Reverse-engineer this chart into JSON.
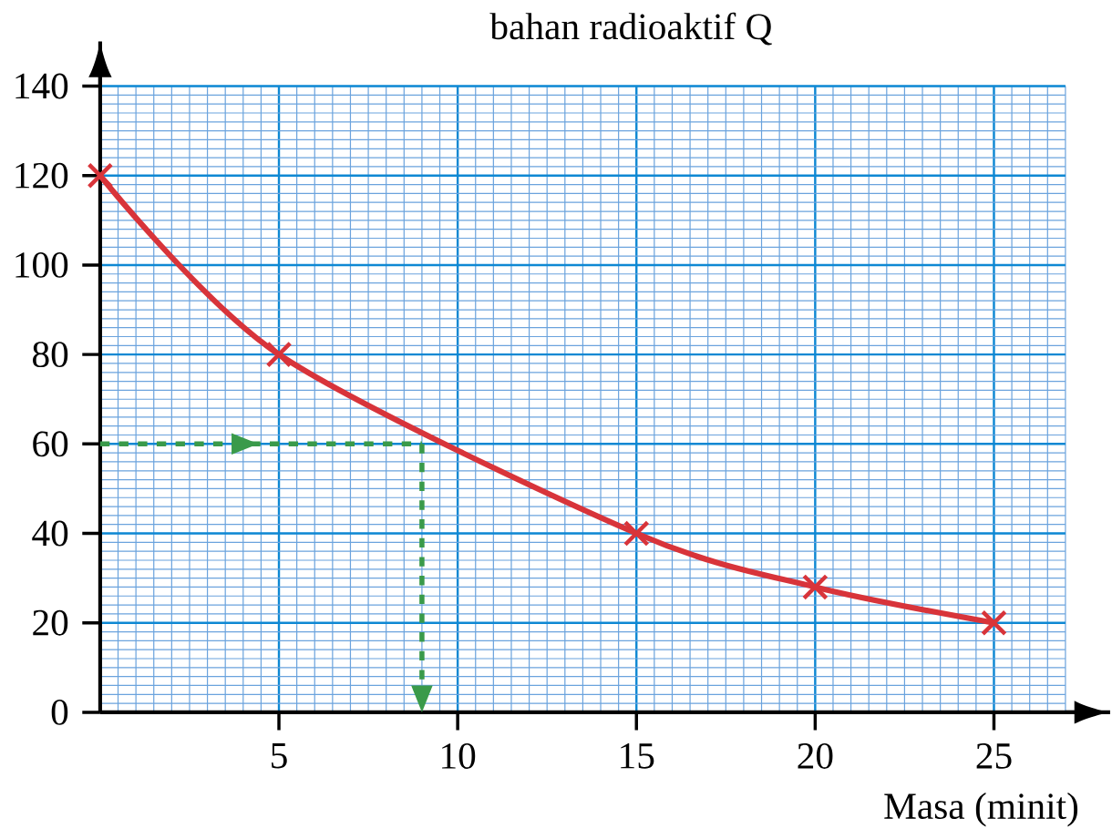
{
  "chart_data": {
    "type": "line",
    "title": "bahan radioaktif Q",
    "xlabel": "Masa (minit)",
    "x": [
      0,
      5,
      15,
      20,
      25
    ],
    "series": [
      {
        "color": "#d8343a",
        "values": [
          120,
          80,
          40,
          28,
          20
        ]
      }
    ],
    "xlim": [
      0,
      27
    ],
    "ylim": [
      0,
      140
    ],
    "xticks": [
      5,
      10,
      15,
      20,
      25
    ],
    "yticks": [
      0,
      20,
      40,
      60,
      80,
      100,
      120,
      140
    ],
    "grid": true,
    "marker": "cross",
    "line_style": "solid",
    "ref_lines": [
      {
        "axis": "y",
        "value": 60,
        "color": "#3a9a4a",
        "line_style": "dashed"
      },
      {
        "axis": "x",
        "value": 9,
        "color": "#3a9a4a",
        "line_style": "dashed"
      }
    ]
  }
}
